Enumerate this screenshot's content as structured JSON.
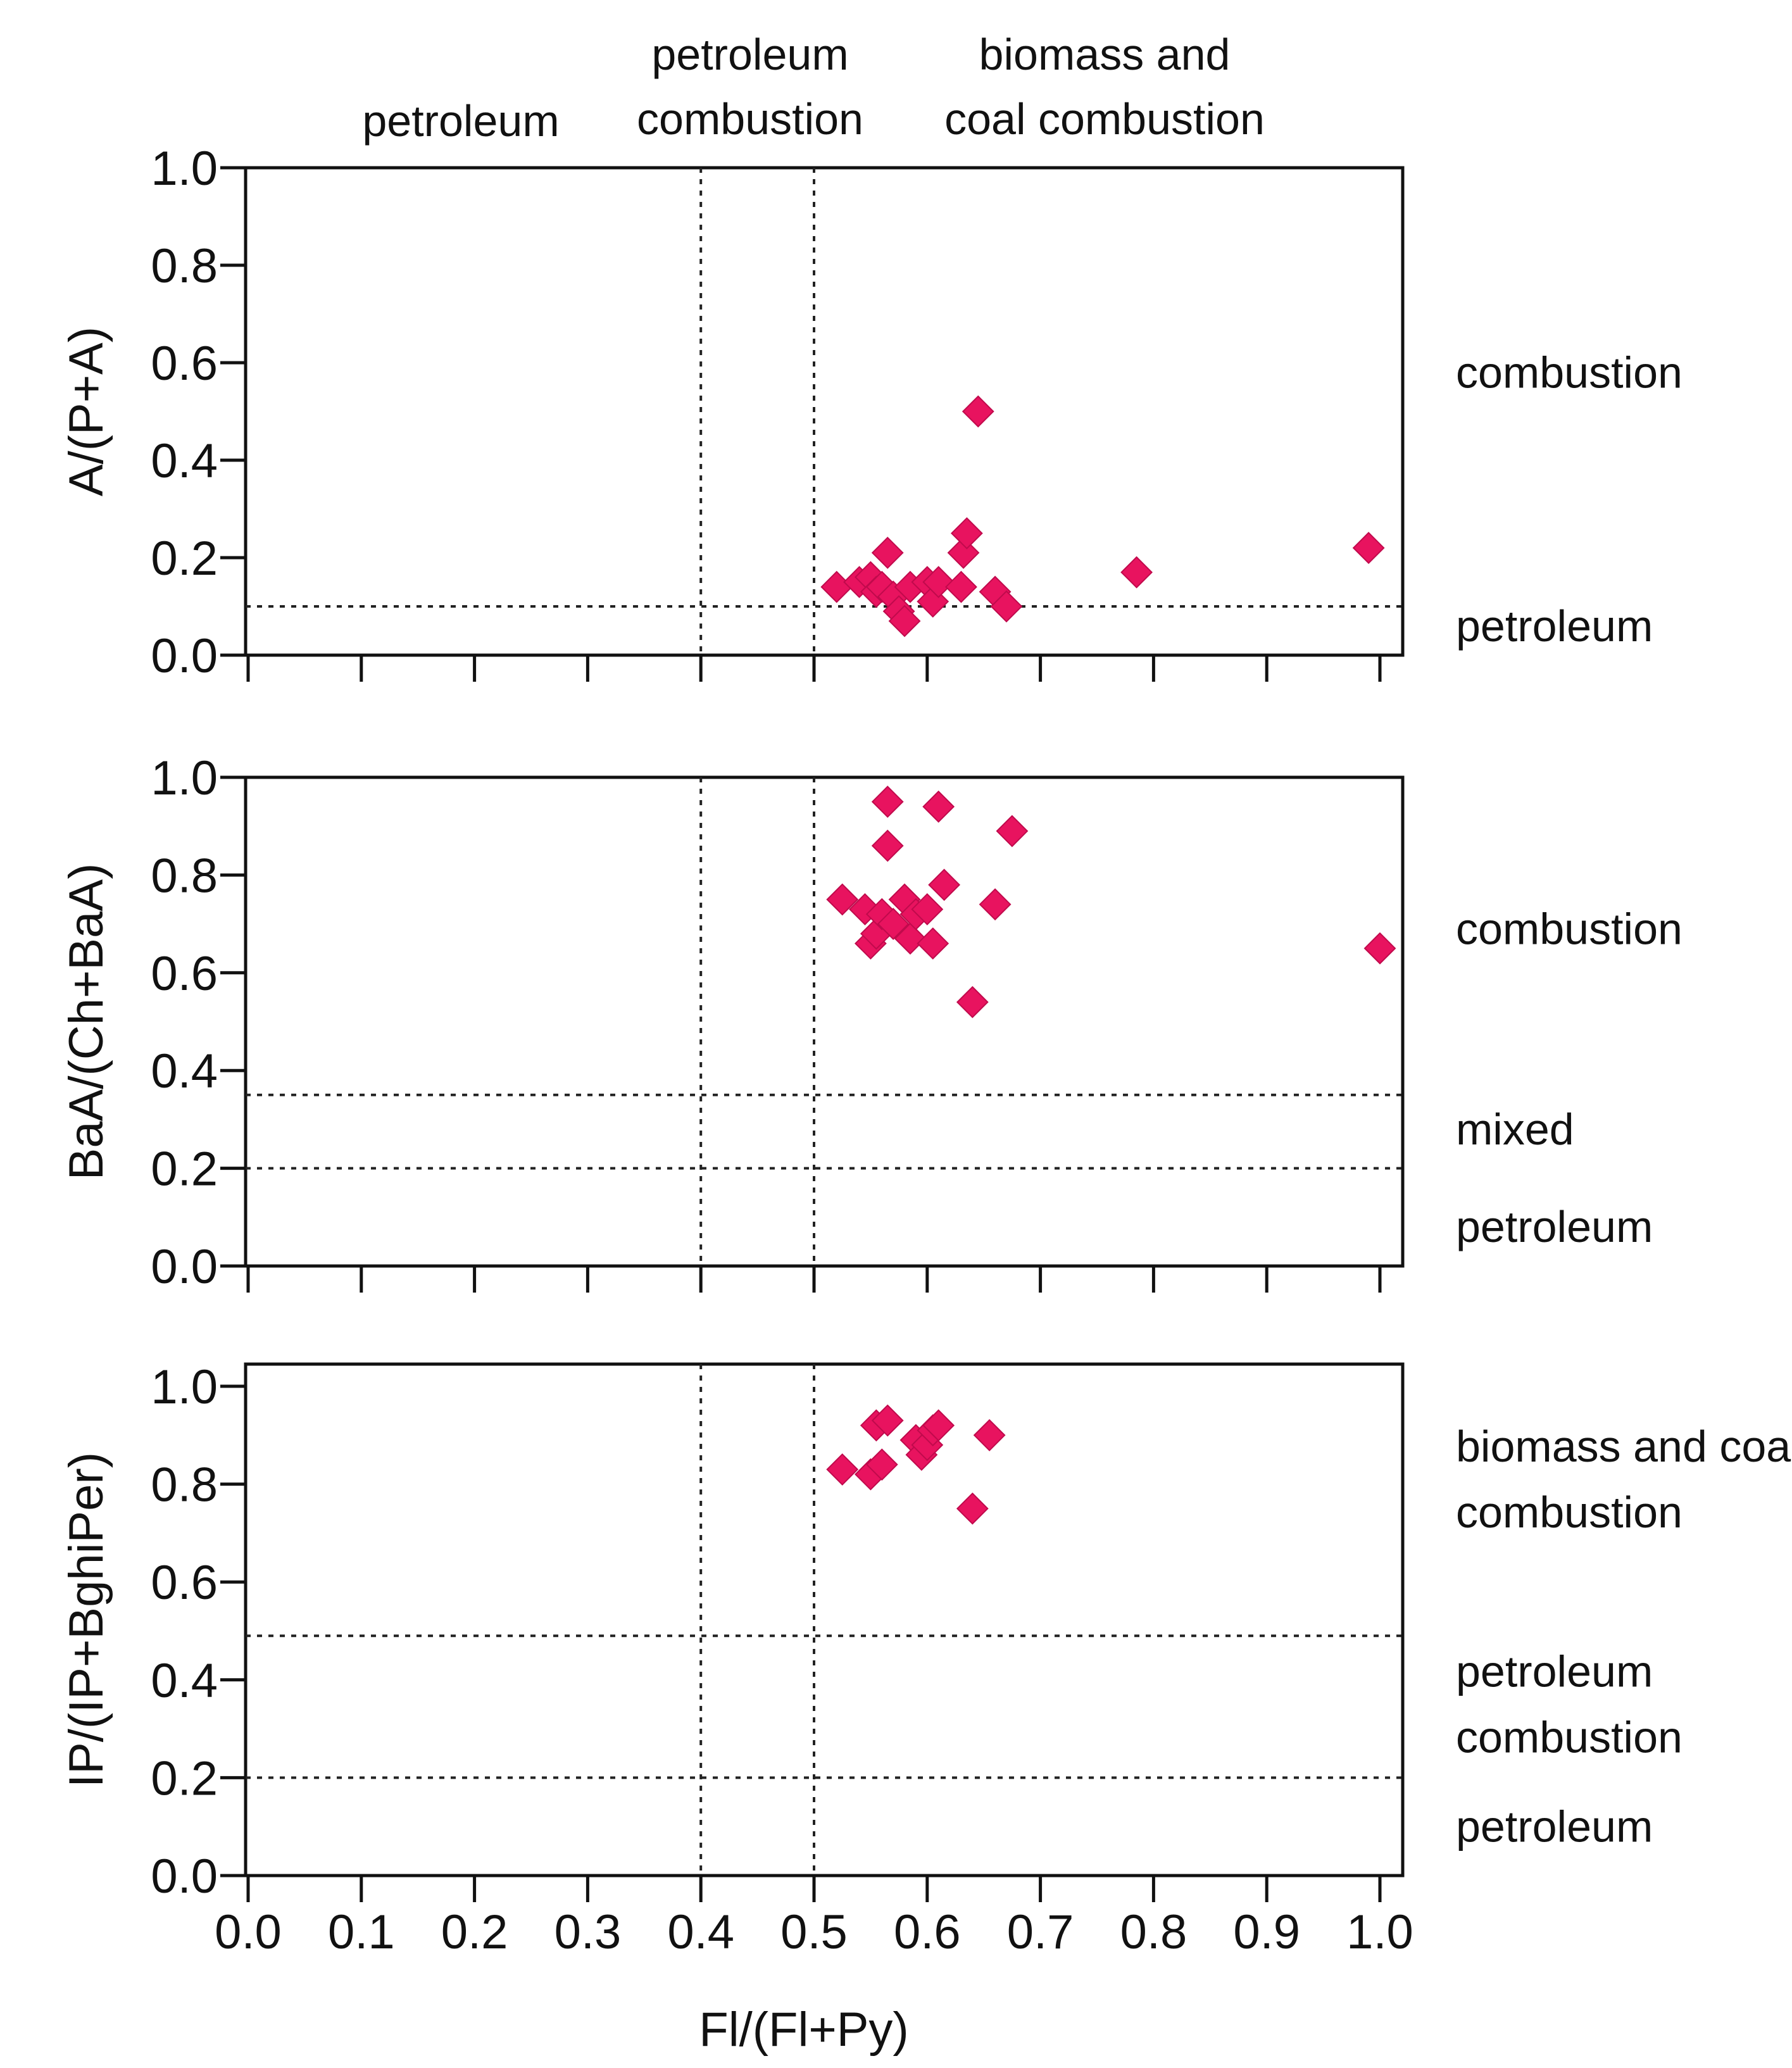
{
  "marker_color": "#e8135f",
  "top_labels": [
    {
      "id": "petroleum",
      "lines": [
        "petroleum"
      ]
    },
    {
      "id": "petroleum-combustion",
      "lines": [
        "petroleum",
        "combustion"
      ]
    },
    {
      "id": "biomass-coal",
      "lines": [
        "biomass and",
        "coal combustion"
      ]
    }
  ],
  "chart_data": [
    {
      "type": "scatter",
      "ylabel": "A/(P+A)",
      "xlim": [
        0.0,
        1.0
      ],
      "ylim": [
        0.0,
        1.0
      ],
      "yticks": [
        "0.0",
        "0.2",
        "0.4",
        "0.6",
        "0.8",
        "1.0"
      ],
      "vlines": [
        0.4,
        0.5
      ],
      "hlines": [
        0.1
      ],
      "regions": [
        {
          "y": 0.58,
          "lines": [
            "combustion"
          ]
        },
        {
          "y": 0.06,
          "lines": [
            "petroleum"
          ]
        }
      ],
      "points": [
        [
          0.52,
          0.14
        ],
        [
          0.54,
          0.15
        ],
        [
          0.55,
          0.16
        ],
        [
          0.555,
          0.13
        ],
        [
          0.56,
          0.14
        ],
        [
          0.565,
          0.21
        ],
        [
          0.57,
          0.12
        ],
        [
          0.575,
          0.09
        ],
        [
          0.58,
          0.07
        ],
        [
          0.585,
          0.14
        ],
        [
          0.6,
          0.15
        ],
        [
          0.605,
          0.11
        ],
        [
          0.61,
          0.15
        ],
        [
          0.63,
          0.14
        ],
        [
          0.632,
          0.21
        ],
        [
          0.635,
          0.25
        ],
        [
          0.645,
          0.5
        ],
        [
          0.66,
          0.13
        ],
        [
          0.67,
          0.1
        ],
        [
          0.785,
          0.17
        ],
        [
          0.99,
          0.22
        ]
      ]
    },
    {
      "type": "scatter",
      "ylabel": "BaA/(Ch+BaA)",
      "xlim": [
        0.0,
        1.0
      ],
      "ylim": [
        0.0,
        1.0
      ],
      "yticks": [
        "0.0",
        "0.2",
        "0.4",
        "0.6",
        "0.8",
        "1.0"
      ],
      "vlines": [
        0.4,
        0.5
      ],
      "hlines": [
        0.2,
        0.35
      ],
      "regions": [
        {
          "y": 0.69,
          "lines": [
            "combustion"
          ]
        },
        {
          "y": 0.28,
          "lines": [
            "mixed"
          ]
        },
        {
          "y": 0.08,
          "lines": [
            "petroleum"
          ]
        }
      ],
      "points": [
        [
          0.525,
          0.75
        ],
        [
          0.545,
          0.73
        ],
        [
          0.55,
          0.66
        ],
        [
          0.555,
          0.68
        ],
        [
          0.56,
          0.72
        ],
        [
          0.565,
          0.95
        ],
        [
          0.565,
          0.86
        ],
        [
          0.57,
          0.7
        ],
        [
          0.58,
          0.75
        ],
        [
          0.585,
          0.67
        ],
        [
          0.59,
          0.72
        ],
        [
          0.6,
          0.73
        ],
        [
          0.605,
          0.66
        ],
        [
          0.61,
          0.94
        ],
        [
          0.615,
          0.78
        ],
        [
          0.64,
          0.54
        ],
        [
          0.66,
          0.74
        ],
        [
          0.675,
          0.89
        ],
        [
          1.0,
          0.65
        ]
      ]
    },
    {
      "type": "scatter",
      "ylabel": "IP/(IP+BghiPer)",
      "xlabel": "Fl/(Fl+Py)",
      "xlim": [
        0.0,
        1.0
      ],
      "ylim": [
        0.0,
        1.0
      ],
      "xticks": [
        "0.0",
        "0.1",
        "0.2",
        "0.3",
        "0.4",
        "0.5",
        "0.6",
        "0.7",
        "0.8",
        "0.9",
        "1.0"
      ],
      "yticks": [
        "0.0",
        "0.2",
        "0.4",
        "0.6",
        "0.8",
        "1.0"
      ],
      "vlines": [
        0.4,
        0.5
      ],
      "hlines": [
        0.2,
        0.49
      ],
      "regions": [
        {
          "y": 0.81,
          "lines": [
            "biomass and coal",
            "combustion"
          ]
        },
        {
          "y": 0.35,
          "lines": [
            "petroleum",
            "combustion"
          ]
        },
        {
          "y": 0.1,
          "lines": [
            "petroleum"
          ]
        }
      ],
      "points": [
        [
          0.525,
          0.83
        ],
        [
          0.55,
          0.82
        ],
        [
          0.555,
          0.92
        ],
        [
          0.56,
          0.84
        ],
        [
          0.565,
          0.93
        ],
        [
          0.59,
          0.89
        ],
        [
          0.595,
          0.86
        ],
        [
          0.6,
          0.88
        ],
        [
          0.605,
          0.91
        ],
        [
          0.61,
          0.92
        ],
        [
          0.64,
          0.75
        ],
        [
          0.655,
          0.9
        ]
      ]
    }
  ]
}
